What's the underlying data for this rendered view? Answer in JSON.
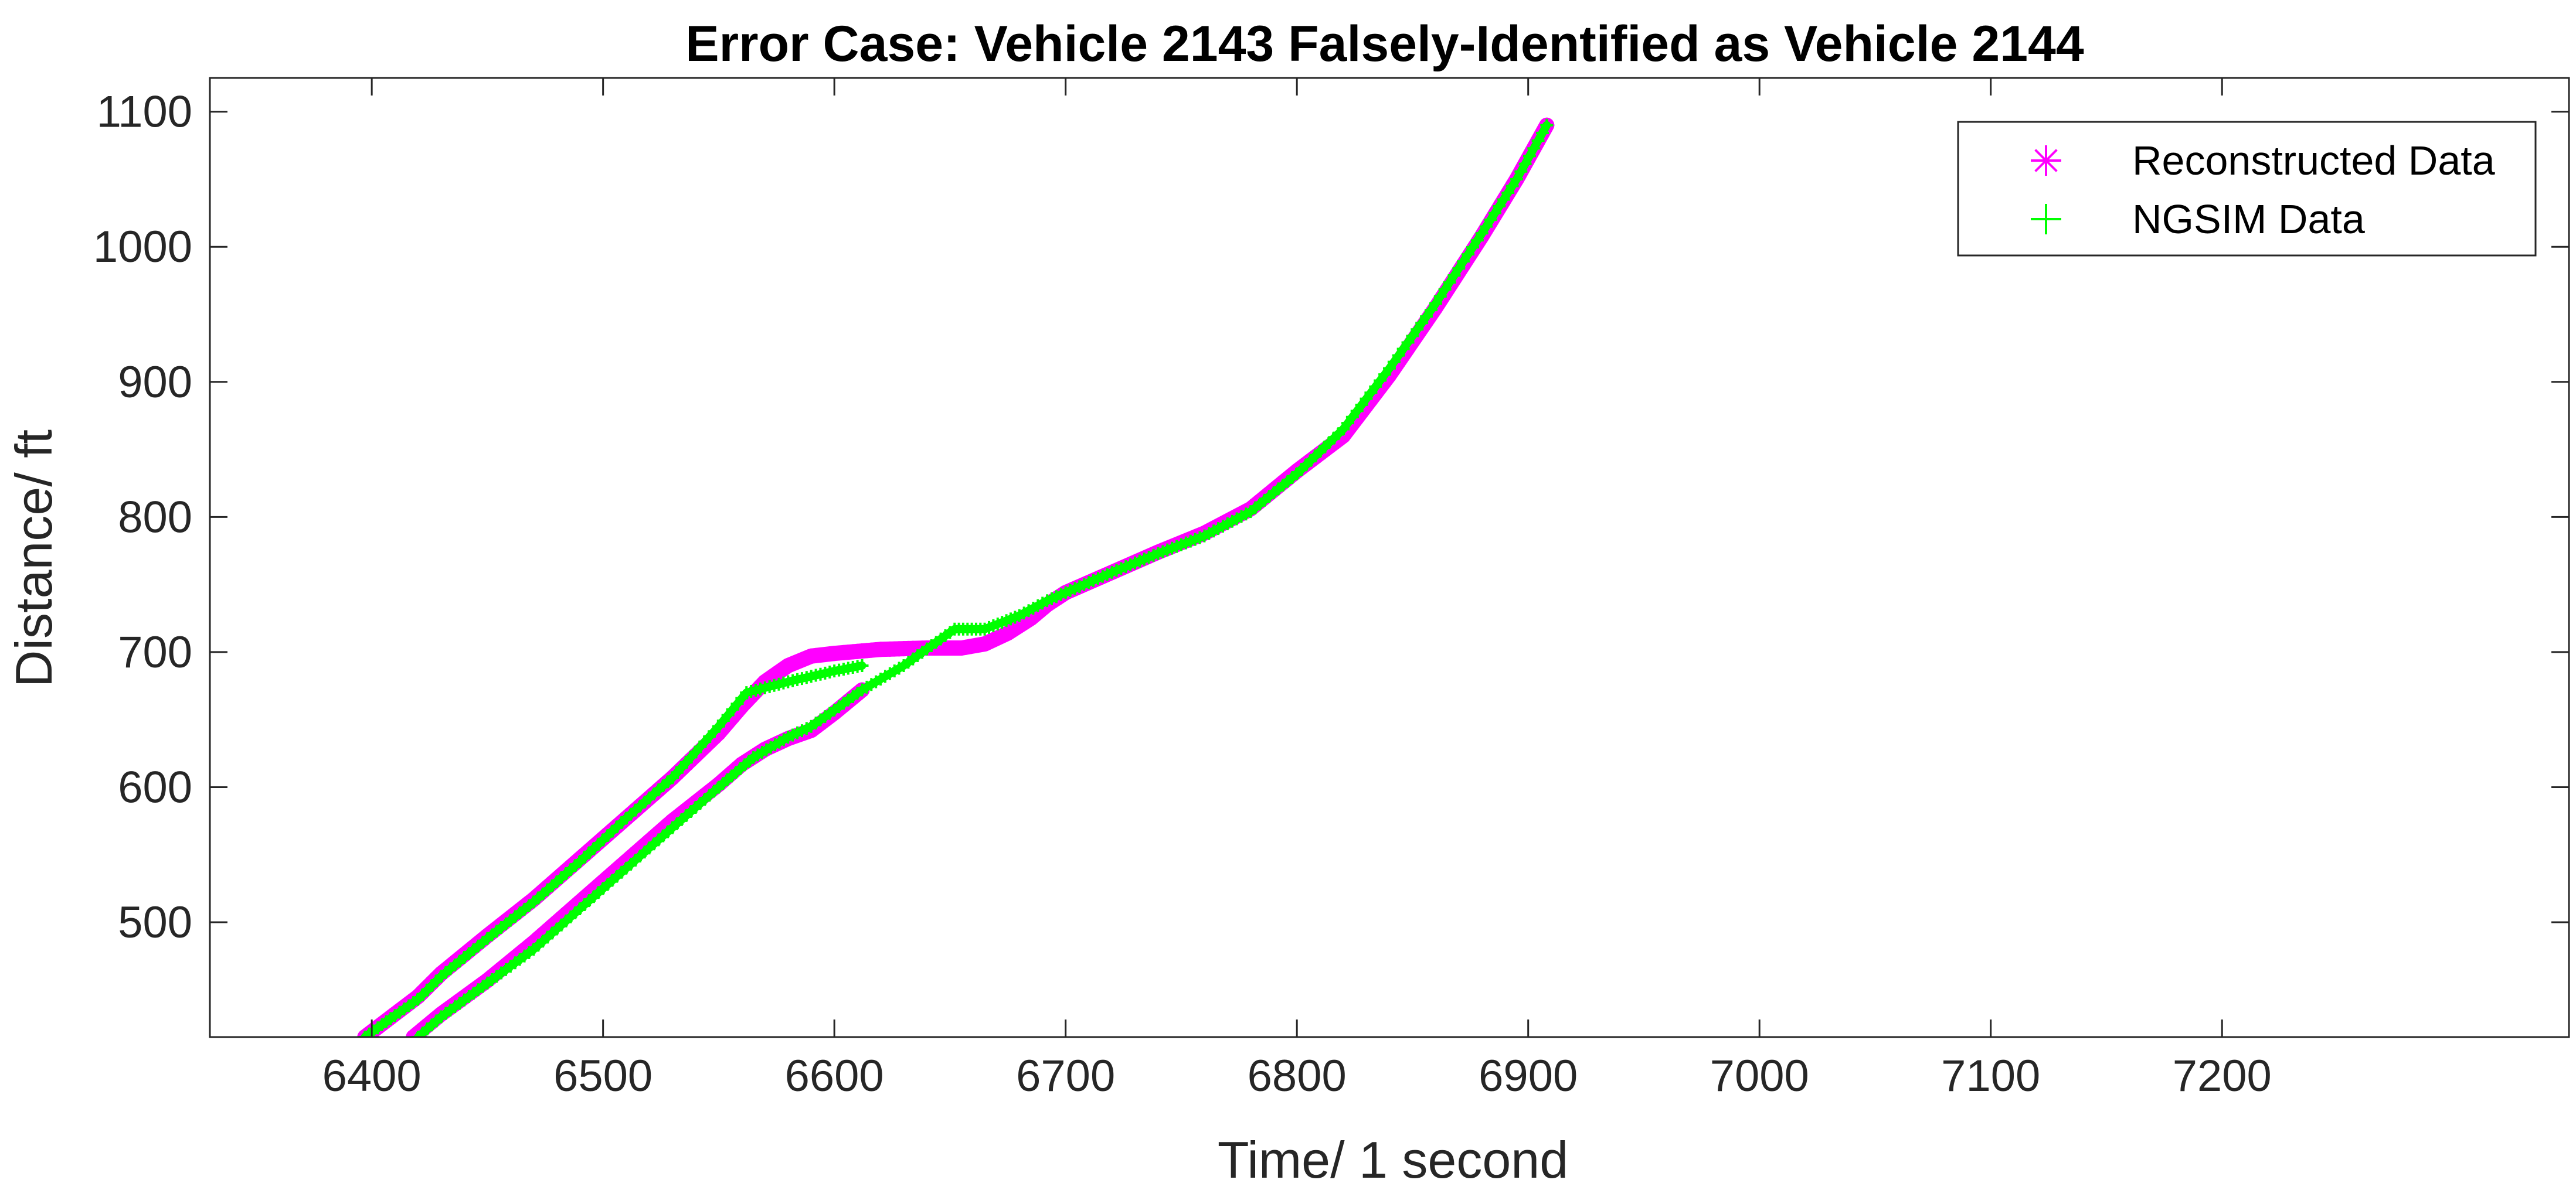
{
  "chart_data": {
    "type": "line",
    "title": "Error Case: Vehicle 2143  Falsely-Identified as Vehicle 2144",
    "xlabel": "Time/ 1 second",
    "ylabel": "Distance/ ft",
    "xlim": [
      6330,
      7350
    ],
    "ylim": [
      415,
      1125
    ],
    "xticks": [
      6400,
      6500,
      6600,
      6700,
      6800,
      6900,
      7000,
      7100,
      7200
    ],
    "yticks": [
      500,
      600,
      700,
      800,
      900,
      1000,
      1100
    ],
    "xtick_labels": [
      "6400",
      "6500",
      "6600",
      "6700",
      "6800",
      "6900",
      "7000",
      "7100",
      "7200"
    ],
    "ytick_labels": [
      "500",
      "600",
      "700",
      "800",
      "900",
      "1000",
      "1100"
    ],
    "grid": false,
    "legend_position": "top-right",
    "legend": {
      "entries": [
        {
          "label": "Reconstructed Data",
          "marker": "*",
          "color": "#ff00ff"
        },
        {
          "label": "NGSIM Data",
          "marker": "+",
          "color": "#00ff00"
        }
      ]
    },
    "series": [
      {
        "name": "Reconstructed Data",
        "color": "#ff00ff",
        "marker": "*",
        "segments": [
          [
            [
              6397,
              415
            ],
            [
              6410,
              432
            ],
            [
              6420,
              445
            ],
            [
              6430,
              462
            ],
            [
              6450,
              490
            ],
            [
              6470,
              517
            ],
            [
              6490,
              547
            ],
            [
              6510,
              577
            ],
            [
              6530,
              607
            ],
            [
              6550,
              640
            ],
            [
              6560,
              660
            ],
            [
              6570,
              678
            ],
            [
              6580,
              690
            ],
            [
              6590,
              697
            ],
            [
              6600,
              699
            ],
            [
              6620,
              702
            ],
            [
              6640,
              703
            ],
            [
              6655,
              703
            ],
            [
              6665,
              706
            ],
            [
              6675,
              714
            ],
            [
              6685,
              725
            ],
            [
              6692,
              735
            ],
            [
              6700,
              744
            ],
            [
              6720,
              759
            ],
            [
              6740,
              774
            ],
            [
              6760,
              788
            ],
            [
              6780,
              806
            ],
            [
              6800,
              834
            ],
            [
              6820,
              860
            ],
            [
              6840,
              905
            ],
            [
              6860,
              955
            ],
            [
              6880,
              1008
            ],
            [
              6895,
              1050
            ],
            [
              6908,
              1090
            ]
          ],
          [
            [
              6418,
              415
            ],
            [
              6430,
              432
            ],
            [
              6450,
              457
            ],
            [
              6470,
              485
            ],
            [
              6490,
              515
            ],
            [
              6510,
              545
            ],
            [
              6530,
              575
            ],
            [
              6550,
              602
            ],
            [
              6560,
              617
            ],
            [
              6570,
              628
            ],
            [
              6580,
              636
            ],
            [
              6590,
              642
            ],
            [
              6600,
              655
            ],
            [
              6612,
              672
            ]
          ]
        ]
      },
      {
        "name": "NGSIM Data",
        "color": "#00ff00",
        "marker": "+",
        "segments": [
          [
            [
              6397,
              415
            ],
            [
              6410,
              431
            ],
            [
              6420,
              443
            ],
            [
              6430,
              460
            ],
            [
              6450,
              488
            ],
            [
              6470,
              515
            ],
            [
              6490,
              545
            ],
            [
              6510,
              577
            ],
            [
              6530,
              607
            ],
            [
              6550,
              645
            ],
            [
              6562,
              670
            ],
            [
              6580,
              678
            ],
            [
              6600,
              686
            ],
            [
              6612,
              690
            ]
          ],
          [
            [
              6420,
              415
            ],
            [
              6430,
              430
            ],
            [
              6450,
              455
            ],
            [
              6470,
              480
            ],
            [
              6490,
              510
            ],
            [
              6510,
              540
            ],
            [
              6530,
              570
            ],
            [
              6550,
              600
            ],
            [
              6565,
              622
            ],
            [
              6580,
              637
            ],
            [
              6590,
              645
            ],
            [
              6600,
              657
            ],
            [
              6612,
              672
            ],
            [
              6630,
              690
            ],
            [
              6652,
              717
            ],
            [
              6665,
              717
            ],
            [
              6680,
              727
            ],
            [
              6692,
              738
            ],
            [
              6700,
              744
            ],
            [
              6720,
              759
            ],
            [
              6740,
              773
            ],
            [
              6760,
              786
            ],
            [
              6780,
              804
            ],
            [
              6800,
              832
            ],
            [
              6820,
              865
            ],
            [
              6840,
              910
            ],
            [
              6860,
              958
            ],
            [
              6880,
              1010
            ],
            [
              6895,
              1050
            ],
            [
              6908,
              1090
            ]
          ]
        ]
      }
    ]
  }
}
